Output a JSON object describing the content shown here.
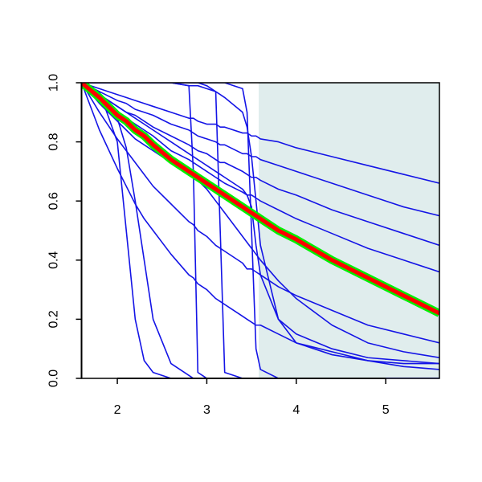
{
  "chart_data": {
    "type": "line",
    "x": [
      1.6,
      1.8,
      2.0,
      2.1,
      2.2,
      2.3,
      2.4,
      2.6,
      2.8,
      2.85,
      2.9,
      3.0,
      3.1,
      3.15,
      3.2,
      3.4,
      3.45,
      3.5,
      3.55,
      3.6,
      3.8,
      4.0,
      4.4,
      4.8,
      5.2,
      5.6
    ],
    "xlim": [
      1.6,
      5.6
    ],
    "xticks": [
      2,
      3,
      4,
      5
    ],
    "ylim": [
      0,
      1
    ],
    "yticks": [
      {
        "value": 0,
        "label": "0.0"
      },
      {
        "value": 0.2,
        "label": "0.2"
      },
      {
        "value": 0.4,
        "label": "0.4"
      },
      {
        "value": 0.6,
        "label": "0.6"
      },
      {
        "value": 0.8,
        "label": "0.8"
      },
      {
        "value": 1,
        "label": "1.0"
      }
    ],
    "shaded_region": {
      "xlim": [
        3.58,
        5.6
      ],
      "color": "#e0eded"
    },
    "series": [
      {
        "color": "#1414e6",
        "values": [
          1,
          0.98,
          0.96,
          0.95,
          0.94,
          0.93,
          0.92,
          0.9,
          0.88,
          0.88,
          0.87,
          0.86,
          0.86,
          0.85,
          0.85,
          0.83,
          0.83,
          0.82,
          0.82,
          0.81,
          0.8,
          0.78,
          0.75,
          0.72,
          0.69,
          0.66
        ]
      },
      {
        "color": "#1414e6",
        "values": [
          1,
          0.97,
          0.94,
          0.93,
          0.91,
          0.9,
          0.89,
          0.86,
          0.84,
          0.83,
          0.82,
          0.81,
          0.8,
          0.79,
          0.79,
          0.76,
          0.76,
          0.75,
          0.75,
          0.74,
          0.72,
          0.7,
          0.66,
          0.62,
          0.58,
          0.55
        ]
      },
      {
        "color": "#1414e6",
        "values": [
          1,
          0.96,
          0.92,
          0.9,
          0.89,
          0.87,
          0.85,
          0.82,
          0.79,
          0.78,
          0.77,
          0.76,
          0.74,
          0.73,
          0.73,
          0.7,
          0.69,
          0.68,
          0.68,
          0.67,
          0.64,
          0.62,
          0.57,
          0.53,
          0.49,
          0.45
        ]
      },
      {
        "color": "#1414e6",
        "values": [
          1,
          0.95,
          0.9,
          0.88,
          0.86,
          0.84,
          0.82,
          0.77,
          0.74,
          0.73,
          0.72,
          0.7,
          0.68,
          0.67,
          0.66,
          0.63,
          0.62,
          0.62,
          0.61,
          0.6,
          0.57,
          0.54,
          0.49,
          0.44,
          0.4,
          0.36
        ]
      },
      {
        "color": "#1414e6",
        "values": [
          1,
          0.9,
          0.81,
          0.77,
          0.73,
          0.69,
          0.65,
          0.59,
          0.53,
          0.52,
          0.5,
          0.48,
          0.45,
          0.44,
          0.43,
          0.39,
          0.37,
          0.37,
          0.36,
          0.35,
          0.31,
          0.28,
          0.23,
          0.18,
          0.15,
          0.12
        ]
      },
      {
        "color": "#1414e6",
        "values": [
          1,
          0.84,
          0.71,
          0.65,
          0.59,
          0.54,
          0.5,
          0.42,
          0.35,
          0.34,
          0.32,
          0.3,
          0.27,
          0.26,
          0.25,
          0.21,
          0.2,
          0.19,
          0.18,
          0.18,
          0.15,
          0.12,
          0.09,
          0.06,
          0.04,
          0.03
        ]
      },
      {
        "color": "#1414e6",
        "values": [
          1,
          0.97,
          0.8,
          0.5,
          0.2,
          0.06,
          0.02,
          0,
          0,
          0,
          0,
          0,
          0,
          0,
          0,
          0,
          0,
          0,
          0,
          0,
          0,
          0,
          0,
          0,
          0,
          0
        ]
      },
      {
        "color": "#1414e6",
        "values": [
          1,
          0.96,
          0.88,
          0.78,
          0.6,
          0.4,
          0.2,
          0.05,
          0.01,
          0,
          0,
          0,
          0,
          0,
          0,
          0,
          0,
          0,
          0,
          0,
          0,
          0,
          0,
          0,
          0,
          0
        ]
      },
      {
        "color": "#1414e6",
        "values": [
          1,
          1,
          1,
          1,
          1,
          1,
          1,
          1,
          0.99,
          0.7,
          0.02,
          0,
          0,
          0,
          0,
          0,
          0,
          0,
          0,
          0,
          0,
          0,
          0,
          0,
          0,
          0
        ]
      },
      {
        "color": "#1414e6",
        "values": [
          1,
          1,
          1,
          1,
          1,
          1,
          1,
          1,
          1,
          1,
          1,
          0.99,
          0.97,
          0.5,
          0.02,
          0,
          0,
          0,
          0,
          0,
          0,
          0,
          0,
          0,
          0,
          0
        ]
      },
      {
        "color": "#1414e6",
        "values": [
          1,
          1,
          1,
          1,
          1,
          1,
          1,
          1,
          1,
          1,
          1,
          1,
          1,
          1,
          1,
          0.98,
          0.9,
          0.5,
          0.1,
          0.03,
          0,
          0,
          0,
          0,
          0,
          0
        ]
      },
      {
        "color": "#1414e6",
        "values": [
          1,
          1,
          1,
          1,
          1,
          1,
          1,
          1,
          0.99,
          0.99,
          0.99,
          0.98,
          0.97,
          0.96,
          0.95,
          0.9,
          0.85,
          0.75,
          0.6,
          0.45,
          0.2,
          0.12,
          0.08,
          0.06,
          0.05,
          0.05
        ]
      },
      {
        "color": "#1414e6",
        "values": [
          1,
          0.96,
          0.92,
          0.9,
          0.88,
          0.86,
          0.84,
          0.8,
          0.76,
          0.75,
          0.74,
          0.72,
          0.7,
          0.69,
          0.68,
          0.64,
          0.62,
          0.58,
          0.45,
          0.35,
          0.2,
          0.15,
          0.1,
          0.07,
          0.06,
          0.05
        ]
      },
      {
        "color": "#1414e6",
        "values": [
          1,
          0.93,
          0.87,
          0.84,
          0.81,
          0.79,
          0.77,
          0.73,
          0.69,
          0.68,
          0.67,
          0.64,
          0.6,
          0.58,
          0.56,
          0.48,
          0.46,
          0.44,
          0.42,
          0.4,
          0.33,
          0.27,
          0.18,
          0.12,
          0.09,
          0.07
        ]
      },
      {
        "color": "#00ee00",
        "values": [
          1,
          0.95,
          0.89,
          0.87,
          0.84,
          0.82,
          0.79,
          0.74,
          0.7,
          0.69,
          0.68,
          0.66,
          0.64,
          0.63,
          0.62,
          0.58,
          0.57,
          0.56,
          0.55,
          0.54,
          0.5,
          0.47,
          0.4,
          0.34,
          0.28,
          0.22
        ]
      },
      {
        "color": "#ff0000",
        "values": [
          1,
          0.95,
          0.89,
          0.87,
          0.84,
          0.82,
          0.79,
          0.74,
          0.7,
          0.69,
          0.68,
          0.66,
          0.64,
          0.63,
          0.62,
          0.58,
          0.57,
          0.56,
          0.55,
          0.54,
          0.5,
          0.47,
          0.4,
          0.34,
          0.28,
          0.22
        ]
      }
    ]
  }
}
